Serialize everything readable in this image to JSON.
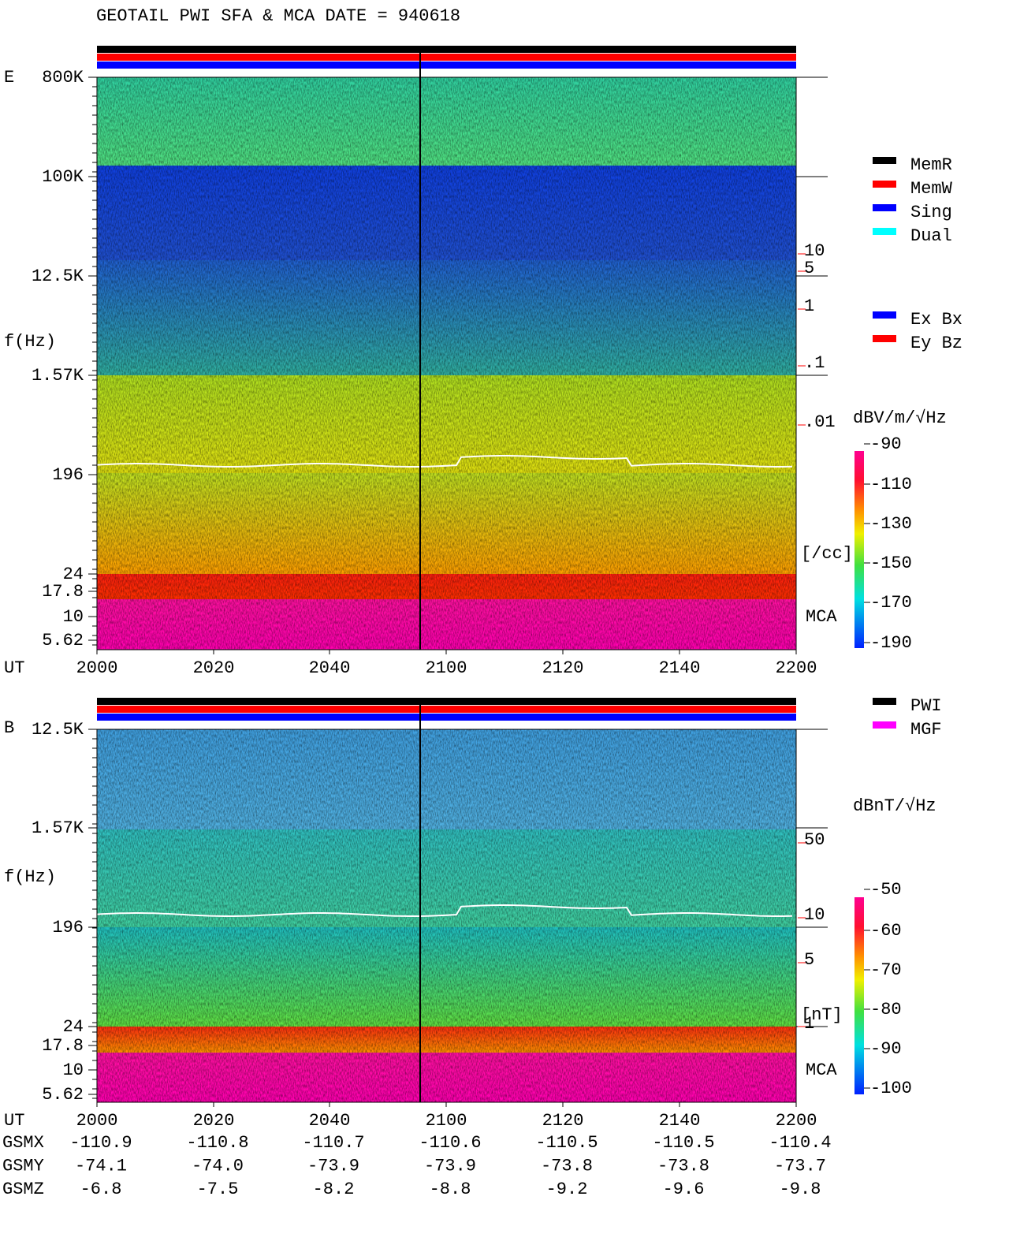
{
  "title": "GEOTAIL  PWI SFA & MCA   DATE = 940618",
  "panels": [
    {
      "label": "E",
      "ylabel": "f(Hz)",
      "yticks": [
        "800K",
        "100K",
        "12.5K",
        "1.57K",
        "196",
        "24",
        "17.8",
        "10",
        "5.62"
      ],
      "xlabel": "UT",
      "xticks": [
        "2000",
        "2020",
        "2040",
        "2100",
        "2120",
        "2140",
        "2200"
      ],
      "legend": [
        {
          "name": "MemR",
          "color": "#000000"
        },
        {
          "name": "MemW",
          "color": "#ff0000"
        },
        {
          "name": "Sing",
          "color": "#0000ff"
        },
        {
          "name": "Dual",
          "color": "#00ffff"
        }
      ],
      "legend2": [
        {
          "name": "Ex Bx",
          "color": "#0000ff"
        },
        {
          "name": "Ey Bz",
          "color": "#ff0000"
        }
      ],
      "scale_ticks": [
        "10",
        "5",
        "1",
        ".1",
        ".01"
      ],
      "scale_unit": "[/cc]",
      "mca": "MCA",
      "colorbar": {
        "unit": "dBV/m/√Hz",
        "ticks": [
          -90,
          -110,
          -130,
          -150,
          -170,
          -190
        ]
      }
    },
    {
      "label": "B",
      "ylabel": "f(Hz)",
      "yticks": [
        "12.5K",
        "1.57K",
        "196",
        "24",
        "17.8",
        "10",
        "5.62"
      ],
      "xlabel": "UT",
      "xticks": [
        "2000",
        "2020",
        "2040",
        "2100",
        "2120",
        "2140",
        "2200"
      ],
      "legend": [
        {
          "name": "PWI",
          "color": "#000000"
        },
        {
          "name": "MGF",
          "color": "#ff00ff"
        }
      ],
      "scale_ticks": [
        "50",
        "10",
        "5",
        "1"
      ],
      "scale_unit": "[nT]",
      "mca": "MCA",
      "colorbar": {
        "unit": "dBnT/√Hz",
        "ticks": [
          -50,
          -60,
          -70,
          -80,
          -90,
          -100
        ]
      }
    }
  ],
  "orbit": [
    {
      "name": "GSMX",
      "values": [
        "-110.9",
        "-110.8",
        "-110.7",
        "-110.6",
        "-110.5",
        "-110.5",
        "-110.4"
      ]
    },
    {
      "name": "GSMY",
      "values": [
        "-74.1",
        "-74.0",
        "-73.9",
        "-73.9",
        "-73.8",
        "-73.8",
        "-73.7"
      ]
    },
    {
      "name": "GSMZ",
      "values": [
        "-6.8",
        "-7.5",
        "-8.2",
        "-8.8",
        "-9.2",
        "-9.6",
        "-9.8"
      ]
    }
  ]
}
